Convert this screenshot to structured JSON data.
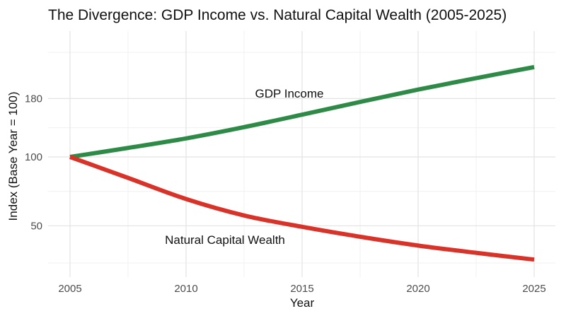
{
  "chart_data": {
    "type": "line",
    "title": "The Divergence: GDP Income vs. Natural Capital Wealth (2005-2025)",
    "xlabel": "Year",
    "ylabel": "Index (Base Year = 100)",
    "y_scale": "log",
    "xlim": [
      2005,
      2025
    ],
    "x_ticks": [
      2005,
      2010,
      2015,
      2020,
      2025
    ],
    "y_ticks": [
      50,
      100,
      180
    ],
    "grid": true,
    "series": [
      {
        "name": "GDP Income",
        "color": "#2e8b47",
        "x": [
          2005,
          2007.5,
          2010,
          2012.5,
          2015,
          2017.5,
          2020,
          2022.5,
          2025
        ],
        "values": [
          100,
          109.5,
          120.5,
          135,
          153,
          174,
          197,
          221,
          247
        ]
      },
      {
        "name": "Natural Capital Wealth",
        "color": "#d93229",
        "x": [
          2005,
          2007.5,
          2010,
          2012.5,
          2015,
          2017.5,
          2020,
          2022.5,
          2025
        ],
        "values": [
          100,
          81,
          65.5,
          55.5,
          49.5,
          44.8,
          41,
          38.1,
          35.6
        ]
      }
    ]
  }
}
